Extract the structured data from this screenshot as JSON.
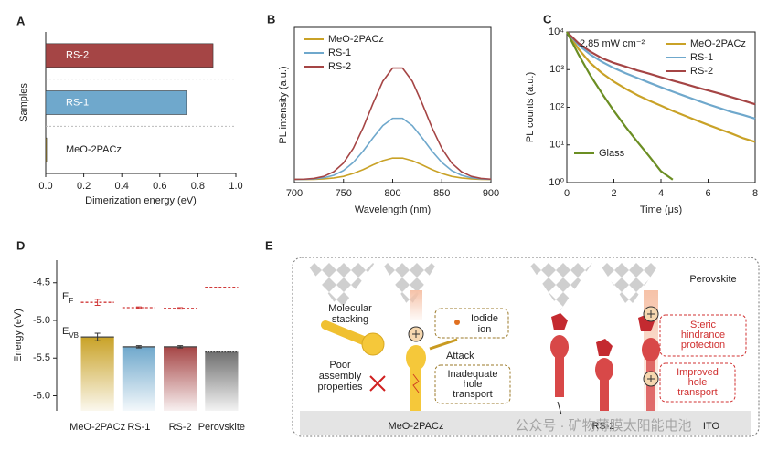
{
  "chart_data": [
    {
      "type": "bar",
      "orientation": "horizontal",
      "label": "A",
      "categories": [
        "RS-2",
        "RS-1",
        "MeO-2PACz"
      ],
      "values": [
        0.88,
        0.74,
        0.005
      ],
      "colors": [
        "#a54545",
        "#6fa8cc",
        "#c9a227"
      ],
      "xlim": [
        0,
        1
      ],
      "xticks": [
        {
          "value": 0,
          "label": "0.0"
        },
        0.2,
        0.4,
        0.6,
        0.8,
        {
          "value": 1,
          "label": "1.0"
        }
      ],
      "xlabel": "Dimerization energy (eV)",
      "ylabel": "Samples"
    },
    {
      "type": "line",
      "label": "B",
      "x": [
        700,
        710,
        720,
        730,
        740,
        750,
        760,
        770,
        780,
        790,
        800,
        810,
        820,
        830,
        840,
        850,
        860,
        870,
        880,
        890,
        900
      ],
      "series": [
        {
          "name": "MeO-2PACz",
          "color": "#c9a227",
          "values": [
            0.02,
            0.02,
            0.021,
            0.024,
            0.03,
            0.04,
            0.059,
            0.084,
            0.114,
            0.141,
            0.158,
            0.158,
            0.141,
            0.114,
            0.084,
            0.059,
            0.04,
            0.03,
            0.024,
            0.021,
            0.02
          ]
        },
        {
          "name": "RS-1",
          "color": "#6fa8cc",
          "values": [
            0.02,
            0.021,
            0.024,
            0.031,
            0.047,
            0.078,
            0.13,
            0.203,
            0.288,
            0.367,
            0.414,
            0.414,
            0.367,
            0.288,
            0.203,
            0.13,
            0.078,
            0.047,
            0.031,
            0.024,
            0.021
          ]
        },
        {
          "name": "RS-2",
          "color": "#a54545",
          "values": [
            0.021,
            0.022,
            0.027,
            0.04,
            0.07,
            0.126,
            0.221,
            0.354,
            0.51,
            0.653,
            0.738,
            0.738,
            0.653,
            0.51,
            0.354,
            0.221,
            0.126,
            0.07,
            0.04,
            0.027,
            0.022
          ]
        }
      ],
      "xlim": [
        700,
        900
      ],
      "xticks": [
        700,
        750,
        800,
        850,
        900
      ],
      "ylim": [
        0,
        1
      ],
      "xlabel": "Wavelength (nm)",
      "ylabel": "PL intensity (a.u.)",
      "legend": "upper left"
    },
    {
      "type": "line",
      "label": "C",
      "log_scale": true,
      "x": [
        0,
        0.5,
        1,
        1.5,
        2,
        2.5,
        3,
        3.5,
        4,
        4.5,
        5,
        5.5,
        6,
        6.5,
        7,
        7.5,
        8
      ],
      "series": [
        {
          "name": "MeO-2PACz",
          "color": "#c9a227",
          "values": [
            10000,
            3500,
            1500,
            800,
            480,
            310,
            210,
            150,
            110,
            80,
            60,
            45,
            34,
            26,
            20,
            15,
            12
          ]
        },
        {
          "name": "RS-1",
          "color": "#6fa8cc",
          "values": [
            10000,
            4500,
            2500,
            1600,
            1100,
            800,
            600,
            450,
            340,
            260,
            200,
            155,
            120,
            95,
            75,
            62,
            50
          ]
        },
        {
          "name": "RS-2",
          "color": "#a54545",
          "values": [
            10000,
            5000,
            3000,
            2000,
            1500,
            1200,
            950,
            780,
            630,
            510,
            420,
            340,
            280,
            230,
            185,
            150,
            120
          ]
        },
        {
          "name": "Glass",
          "color": "#6b8e23",
          "values": [
            10000,
            2500,
            700,
            230,
            80,
            30,
            12,
            5,
            2,
            1.2,
            null,
            null,
            null,
            null,
            null,
            null,
            null
          ]
        }
      ],
      "xlim": [
        0,
        8
      ],
      "xticks": [
        0,
        2,
        4,
        6,
        8
      ],
      "ylim": [
        1,
        10000
      ],
      "yticks": [
        {
          "value": 1,
          "label": "10⁰"
        },
        {
          "value": 10,
          "label": "10¹"
        },
        {
          "value": 100,
          "label": "10²"
        },
        {
          "value": 1000,
          "label": "10³"
        },
        {
          "value": 10000,
          "label": "10⁴"
        }
      ],
      "xlabel": "Time (μs)",
      "ylabel": "PL counts (a.u.)",
      "annotation": "2.85 mW cm⁻²",
      "legend": "upper right"
    },
    {
      "type": "bar",
      "label": "D",
      "categories": [
        "MeO-2PACz",
        "RS-1",
        "RS-2",
        "Perovskite"
      ],
      "colors": [
        "#c9a227",
        "#6fa8cc",
        "#a54545",
        "#707070"
      ],
      "series": [
        {
          "label": "E",
          "label_sub": "VB",
          "style": "bar",
          "color": "#333333",
          "values": [
            -5.22,
            -5.35,
            -5.35,
            -5.42
          ],
          "errors": [
            0.05,
            0.015,
            0.015,
            null
          ]
        },
        {
          "label": "E",
          "label_sub": "F",
          "style": "dashed",
          "color": "#d03a3a",
          "values": [
            -4.76,
            -4.83,
            -4.84,
            -4.56
          ],
          "errors": [
            0.04,
            0.01,
            0.01,
            null
          ]
        }
      ],
      "ylim": [
        -6.2,
        -4.2
      ],
      "yticks": [
        -4.5,
        {
          "value": -5,
          "label": "-5.0"
        },
        -5.5,
        {
          "value": -6,
          "label": "-6.0"
        }
      ],
      "ylabel": "Energy (eV)"
    }
  ],
  "diagram": {
    "label": "E",
    "perovskite": "Perovskite",
    "molecular_stacking": [
      "Molecular",
      "stacking"
    ],
    "poor_assembly": [
      "Poor",
      "assembly",
      "properties"
    ],
    "iodide_ion": [
      "Iodide",
      "ion"
    ],
    "attack": "Attack",
    "inadequate": [
      "Inadequate",
      "hole",
      "transport"
    ],
    "steric": [
      "Steric",
      "hindrance",
      "protection"
    ],
    "improved": [
      "Improved",
      "hole",
      "transport"
    ],
    "meo": "MeO-2PACz",
    "rs2": "RS-2",
    "ito": "ITO",
    "watermark": "公众号 · 矿物薄膜太阳能电池"
  }
}
